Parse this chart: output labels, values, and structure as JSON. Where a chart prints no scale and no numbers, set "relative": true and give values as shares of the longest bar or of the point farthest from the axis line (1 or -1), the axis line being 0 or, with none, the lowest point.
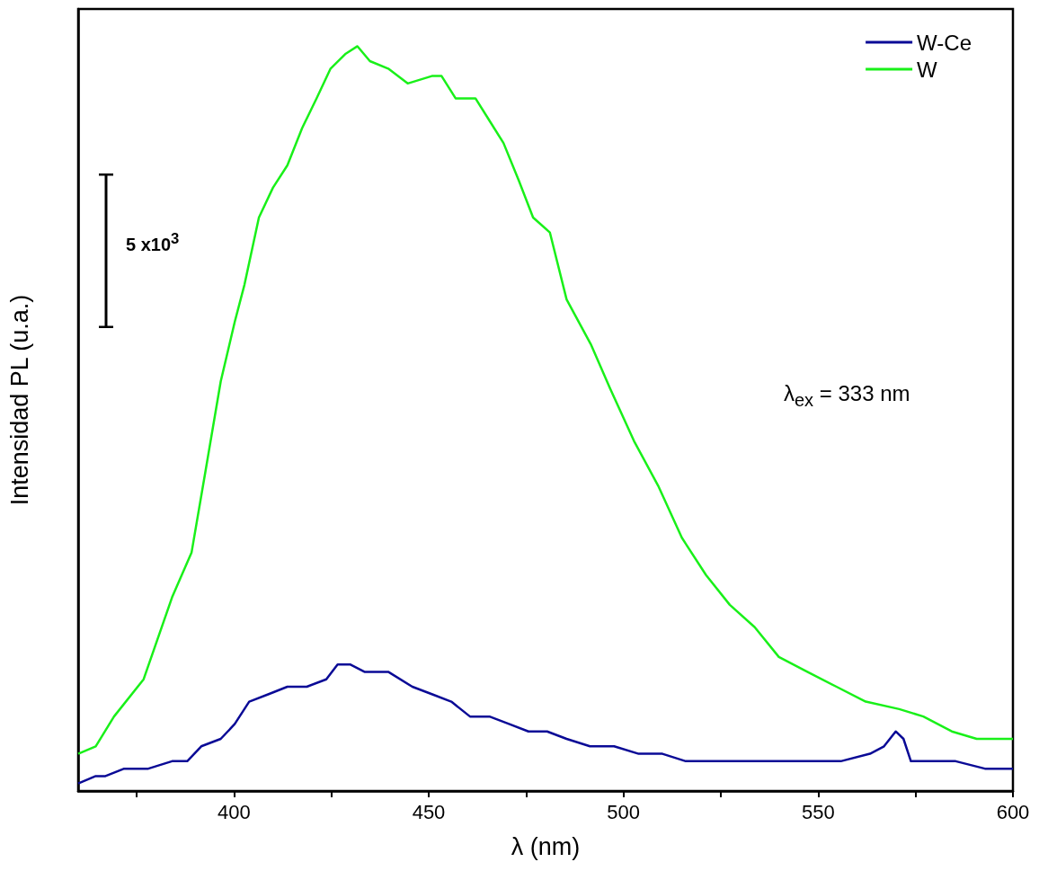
{
  "chart_data": {
    "type": "line",
    "relative": true,
    "xlabel": "λ (nm)",
    "ylabel": "Intensidad PL (u.a.)",
    "xlim": [
      360,
      600
    ],
    "xticks": [
      {
        "value": 375,
        "label": null
      },
      400,
      {
        "value": 425,
        "label": null
      },
      450,
      {
        "value": 475,
        "label": null
      },
      500,
      {
        "value": 525,
        "label": null
      },
      550,
      {
        "value": 575,
        "label": null
      },
      600
    ],
    "legend": "top right",
    "marker": "none",
    "line_style": "solid",
    "grid": false,
    "annotations": [
      "5 x10$^{3}$",
      "λ$_{ex}$ = 333 nm"
    ],
    "series": [
      {
        "name": "W-Ce",
        "color": "#0a0a96",
        "x": [
          360,
          364.5,
          367,
          371.8,
          378,
          384.1,
          388,
          391.6,
          396.6,
          400.2,
          403.9,
          408.9,
          413.7,
          418.7,
          423.7,
          426.6,
          429.8,
          433.5,
          439.6,
          445.8,
          450.8,
          455.8,
          460.6,
          465.6,
          470.6,
          475.6,
          480.4,
          485.4,
          491.4,
          497.6,
          503.9,
          510,
          516,
          522.3,
          528.5,
          534.9,
          541,
          548.3,
          555.8,
          563.3,
          566.9,
          569.9,
          571.9,
          573.8,
          578,
          585.3,
          592.8,
          600
        ],
        "values": [
          0.01,
          0.02,
          0.02,
          0.03,
          0.03,
          0.04,
          0.04,
          0.06,
          0.07,
          0.09,
          0.12,
          0.13,
          0.14,
          0.14,
          0.15,
          0.17,
          0.17,
          0.16,
          0.16,
          0.14,
          0.13,
          0.12,
          0.1,
          0.1,
          0.09,
          0.08,
          0.08,
          0.07,
          0.06,
          0.06,
          0.05,
          0.05,
          0.04,
          0.04,
          0.04,
          0.04,
          0.04,
          0.04,
          0.04,
          0.05,
          0.06,
          0.08,
          0.07,
          0.04,
          0.04,
          0.04,
          0.03,
          0.03
        ]
      },
      {
        "name": "W",
        "color": "#19f019",
        "x": [
          360,
          364.5,
          369.2,
          376.8,
          384.1,
          389.1,
          392.7,
          396.6,
          400.2,
          402.7,
          406.4,
          410,
          413.7,
          417.5,
          421.2,
          424.8,
          428.7,
          431.7,
          434.9,
          439.6,
          444.6,
          450.8,
          453.3,
          456.9,
          462,
          465.6,
          469.2,
          473.1,
          476.8,
          481.1,
          485.4,
          491.6,
          496.6,
          502.7,
          508.9,
          515,
          521.2,
          527.3,
          533.7,
          539.9,
          547.2,
          554.7,
          562.2,
          570.8,
          577,
          584.3,
          590.7,
          600
        ],
        "values": [
          0.05,
          0.06,
          0.1,
          0.15,
          0.26,
          0.32,
          0.43,
          0.55,
          0.63,
          0.68,
          0.77,
          0.81,
          0.84,
          0.89,
          0.93,
          0.97,
          0.99,
          1.0,
          0.98,
          0.97,
          0.95,
          0.96,
          0.96,
          0.93,
          0.93,
          0.9,
          0.87,
          0.82,
          0.77,
          0.75,
          0.66,
          0.6,
          0.54,
          0.47,
          0.41,
          0.34,
          0.29,
          0.25,
          0.22,
          0.18,
          0.16,
          0.14,
          0.12,
          0.11,
          0.1,
          0.08,
          0.07,
          0.07
        ]
      }
    ]
  }
}
